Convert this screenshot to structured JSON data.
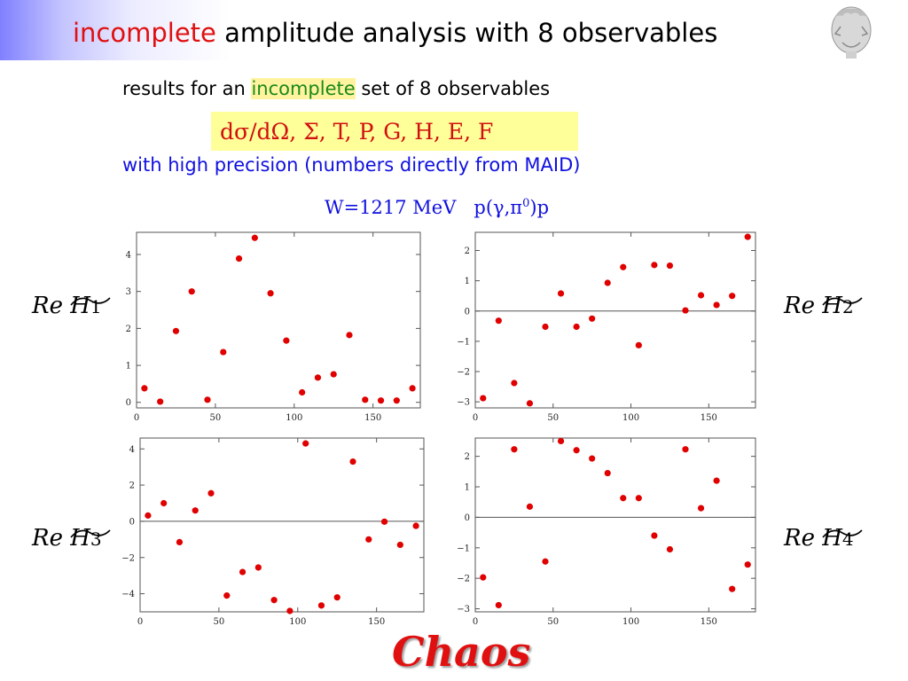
{
  "slide": {
    "title_red": "incomplete",
    "title_rest": " amplitude analysis with 8 observables",
    "line1_pre": "results for an ",
    "line1_green": "incomplete",
    "line1_post": " set of 8 observables",
    "observables": "dσ/dΩ,  Σ,  T,  P,  G,  H,  E,  F",
    "line3": "with high precision (numbers directly from MAID)",
    "energy_label": "W=1217 MeV   p(γ,π⁰)p",
    "footer": "Chaos",
    "panel_labels": [
      {
        "text": "Re H",
        "sub": "1"
      },
      {
        "text": "Re H",
        "sub": "2"
      },
      {
        "text": "Re H",
        "sub": "3"
      },
      {
        "text": "Re H",
        "sub": "4"
      }
    ],
    "colors": {
      "accent_red": "#e01010",
      "blue": "#1010e0",
      "green": "#1a8a1a",
      "highlight": "#ffff99"
    }
  },
  "chart_data": [
    {
      "type": "scatter",
      "xlim": [
        0,
        180
      ],
      "ylim": [
        -0.15,
        4.6
      ],
      "xticks": [
        0,
        50,
        100,
        150
      ],
      "yticks": [
        0,
        1,
        2,
        3,
        4
      ],
      "zero_line": false,
      "x": [
        5,
        15,
        25,
        35,
        45,
        55,
        65,
        75,
        85,
        95,
        105,
        115,
        125,
        135,
        145,
        155,
        165,
        175
      ],
      "y": [
        0.38,
        0.02,
        1.93,
        3.0,
        0.07,
        1.36,
        3.89,
        4.45,
        2.95,
        1.67,
        0.27,
        0.67,
        0.76,
        1.82,
        0.07,
        0.05,
        0.05,
        0.38
      ]
    },
    {
      "type": "scatter",
      "xlim": [
        0,
        180
      ],
      "ylim": [
        -3.2,
        2.6
      ],
      "xticks": [
        0,
        50,
        100,
        150
      ],
      "yticks": [
        -3,
        -2,
        -1,
        0,
        1,
        2
      ],
      "zero_line": true,
      "x": [
        5,
        15,
        25,
        35,
        45,
        55,
        65,
        75,
        85,
        95,
        105,
        115,
        125,
        135,
        145,
        155,
        165,
        175
      ],
      "y": [
        -2.88,
        -0.32,
        -2.38,
        -3.05,
        -0.52,
        0.58,
        -0.52,
        -0.25,
        0.93,
        1.45,
        -1.13,
        1.52,
        1.5,
        0.02,
        0.52,
        0.2,
        0.5,
        2.45
      ]
    },
    {
      "type": "scatter",
      "xlim": [
        0,
        180
      ],
      "ylim": [
        -5.0,
        4.6
      ],
      "xticks": [
        0,
        50,
        100,
        150
      ],
      "yticks": [
        -4,
        -2,
        0,
        2,
        4
      ],
      "zero_line": true,
      "x": [
        5,
        15,
        25,
        35,
        45,
        55,
        65,
        75,
        85,
        95,
        105,
        115,
        125,
        135,
        145,
        155,
        165,
        175
      ],
      "y": [
        0.32,
        1.0,
        -1.15,
        0.6,
        1.55,
        -4.1,
        -2.8,
        -2.55,
        -4.35,
        -4.95,
        4.3,
        -4.65,
        -4.2,
        3.3,
        -1.0,
        -0.02,
        -1.3,
        -0.25
      ]
    },
    {
      "type": "scatter",
      "xlim": [
        0,
        180
      ],
      "ylim": [
        -3.1,
        2.6
      ],
      "xticks": [
        0,
        50,
        100,
        150
      ],
      "yticks": [
        -3,
        -2,
        -1,
        0,
        1,
        2
      ],
      "zero_line": true,
      "x": [
        5,
        15,
        25,
        35,
        45,
        55,
        65,
        75,
        85,
        95,
        105,
        115,
        125,
        135,
        145,
        155,
        165,
        175
      ],
      "y": [
        -1.97,
        -2.88,
        2.23,
        0.35,
        -1.45,
        2.5,
        2.2,
        1.93,
        1.45,
        0.63,
        0.63,
        -0.6,
        -1.05,
        2.23,
        0.3,
        1.2,
        -2.35,
        -1.55
      ]
    }
  ]
}
